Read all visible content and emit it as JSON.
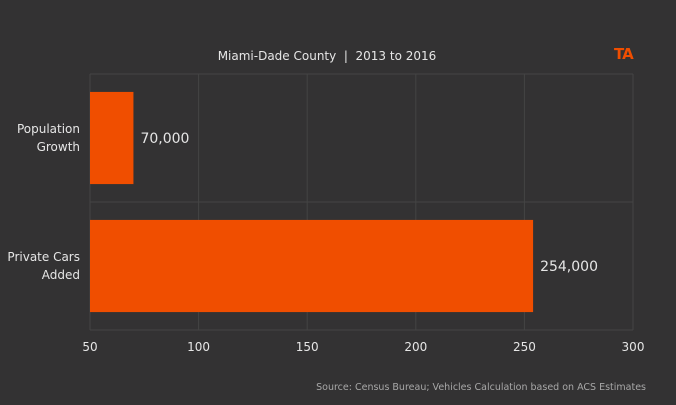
{
  "chart_data": {
    "type": "bar",
    "orientation": "horizontal",
    "title": "Miami-Dade County  |  2013 to 2016",
    "categories": [
      [
        "Population",
        "Growth"
      ],
      [
        "Private Cars",
        "Added"
      ]
    ],
    "values": [
      70000,
      254000
    ],
    "value_labels": [
      "70,000",
      "254,000"
    ],
    "x_ticks": [
      "50",
      "100",
      "150",
      "200",
      "250",
      "300"
    ],
    "xlim": [
      50000,
      300000
    ],
    "x_tick_values": [
      50000,
      100000,
      150000,
      200000,
      250000,
      300000
    ],
    "grid": true,
    "bar_color": "#f04e00",
    "source": "Source: Census Bureau; Vehicles Calculation based on ACS Estimates",
    "logo": "TA"
  },
  "colors": {
    "background": "#333233",
    "grid": "#444444",
    "bar": "#f04e00"
  }
}
